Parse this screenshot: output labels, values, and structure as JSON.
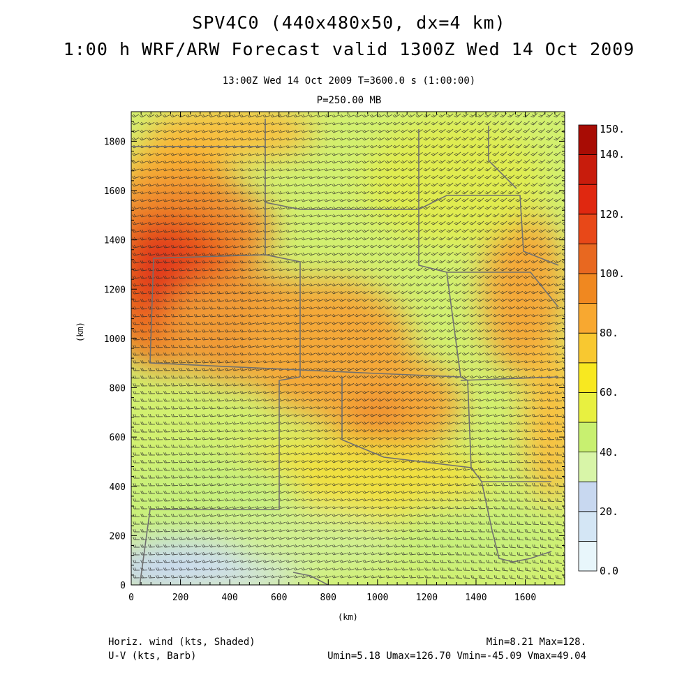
{
  "titles": {
    "line1": "SPV4C0 (440x480x50, dx=4 km)",
    "line2": "1:00 h WRF/ARW Forecast valid 1300Z Wed 14 Oct 2009",
    "time": "13:00Z Wed 14 Oct 2009    T=3600.0 s (1:00:00)",
    "level": "P=250.00 MB"
  },
  "axes": {
    "xlabel": "(km)",
    "ylabel": "(km)",
    "x_ticks": [
      "0",
      "200",
      "400",
      "600",
      "800",
      "1000",
      "1200",
      "1400",
      "1600"
    ],
    "y_ticks": [
      "0",
      "200",
      "400",
      "600",
      "800",
      "1000",
      "1200",
      "1400",
      "1600",
      "1800"
    ],
    "x_range": [
      0,
      1760
    ],
    "y_range": [
      0,
      1920
    ]
  },
  "colorbar": {
    "labels": [
      "0.0",
      "20.",
      "40.",
      "60.",
      "80.",
      "100.",
      "120.",
      "140.",
      "150."
    ],
    "colors": [
      "#e8f6fb",
      "#d4e6f5",
      "#c8d8f0",
      "#d8f5a8",
      "#c8f070",
      "#e8f040",
      "#f8e820",
      "#f8c830",
      "#f8a830",
      "#f08820",
      "#e86820",
      "#e84818",
      "#e02810",
      "#c81c0c",
      "#a80c04"
    ]
  },
  "footer": {
    "left1": "Horiz. wind (kts, Shaded)",
    "left2": "U-V (kts, Barb)",
    "right1": "Min=8.21 Max=128.",
    "right2": "Umin=5.18 Umax=126.70 Vmin=-45.09 Vmax=49.04"
  }
}
